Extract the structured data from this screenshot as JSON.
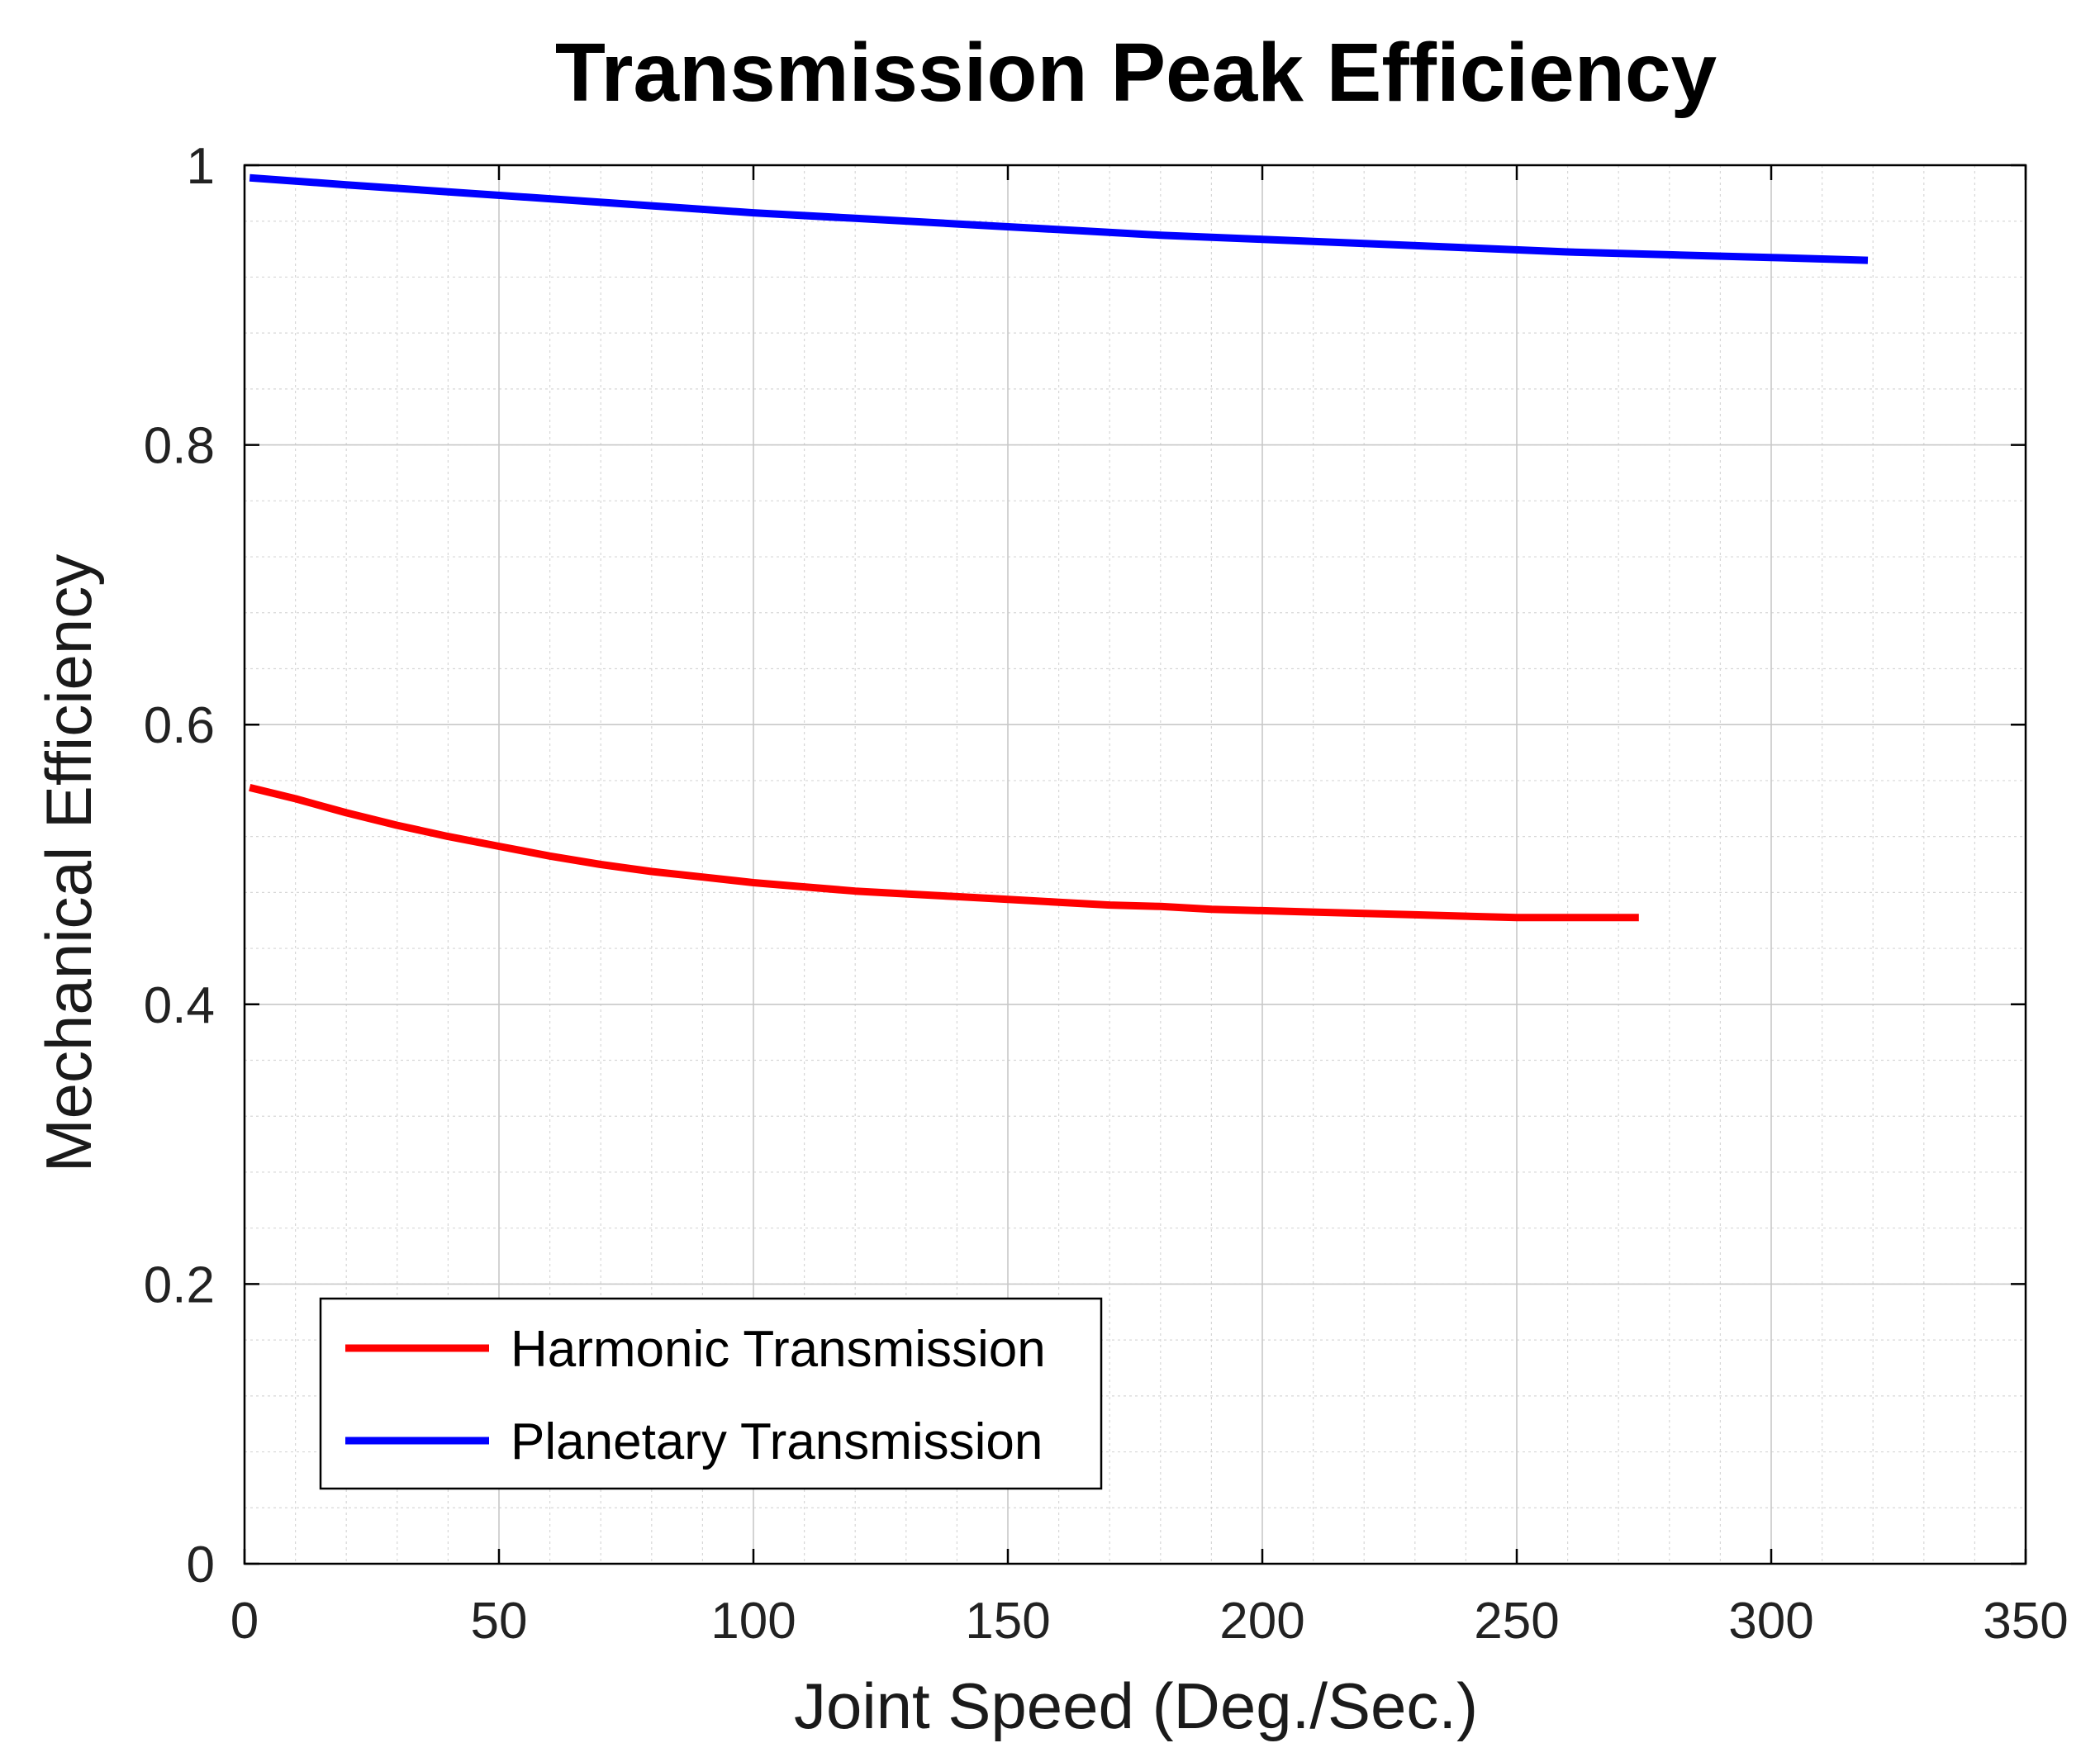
{
  "chart_data": {
    "type": "line",
    "title": "Transmission Peak Efficiency",
    "xlabel": "Joint Speed (Deg./Sec.)",
    "ylabel": "Mechanical Efficiency",
    "xlim": [
      0,
      350
    ],
    "ylim": [
      0,
      1
    ],
    "xticks": [
      0,
      50,
      100,
      150,
      200,
      250,
      300,
      350
    ],
    "yticks": [
      0,
      0.2,
      0.4,
      0.6,
      0.8,
      1
    ],
    "xtick_labels": [
      "0",
      "50",
      "100",
      "150",
      "200",
      "250",
      "300",
      "350"
    ],
    "ytick_labels": [
      "0",
      "0.2",
      "0.4",
      "0.6",
      "0.8",
      "1"
    ],
    "x_minor_step": 10,
    "y_minor_step": 0.04,
    "grid": true,
    "legend_location": "bottom-left",
    "series": [
      {
        "name": "Harmonic Transmission",
        "color": "#ff0000",
        "x": [
          1,
          10,
          20,
          30,
          40,
          50,
          60,
          70,
          80,
          90,
          100,
          110,
          120,
          130,
          140,
          150,
          160,
          170,
          180,
          190,
          200,
          210,
          220,
          230,
          240,
          250,
          260,
          270,
          274
        ],
        "y": [
          0.555,
          0.547,
          0.537,
          0.528,
          0.52,
          0.513,
          0.506,
          0.5,
          0.495,
          0.491,
          0.487,
          0.484,
          0.481,
          0.479,
          0.477,
          0.475,
          0.473,
          0.471,
          0.47,
          0.468,
          0.467,
          0.466,
          0.465,
          0.464,
          0.463,
          0.462,
          0.462,
          0.462,
          0.462
        ]
      },
      {
        "name": "Planetary Transmission",
        "color": "#0000ff",
        "x": [
          1,
          20,
          40,
          60,
          80,
          100,
          120,
          140,
          160,
          180,
          200,
          220,
          240,
          260,
          280,
          300,
          319
        ],
        "y": [
          0.991,
          0.986,
          0.981,
          0.976,
          0.971,
          0.966,
          0.962,
          0.958,
          0.954,
          0.95,
          0.947,
          0.944,
          0.941,
          0.938,
          0.936,
          0.934,
          0.932
        ]
      }
    ]
  }
}
